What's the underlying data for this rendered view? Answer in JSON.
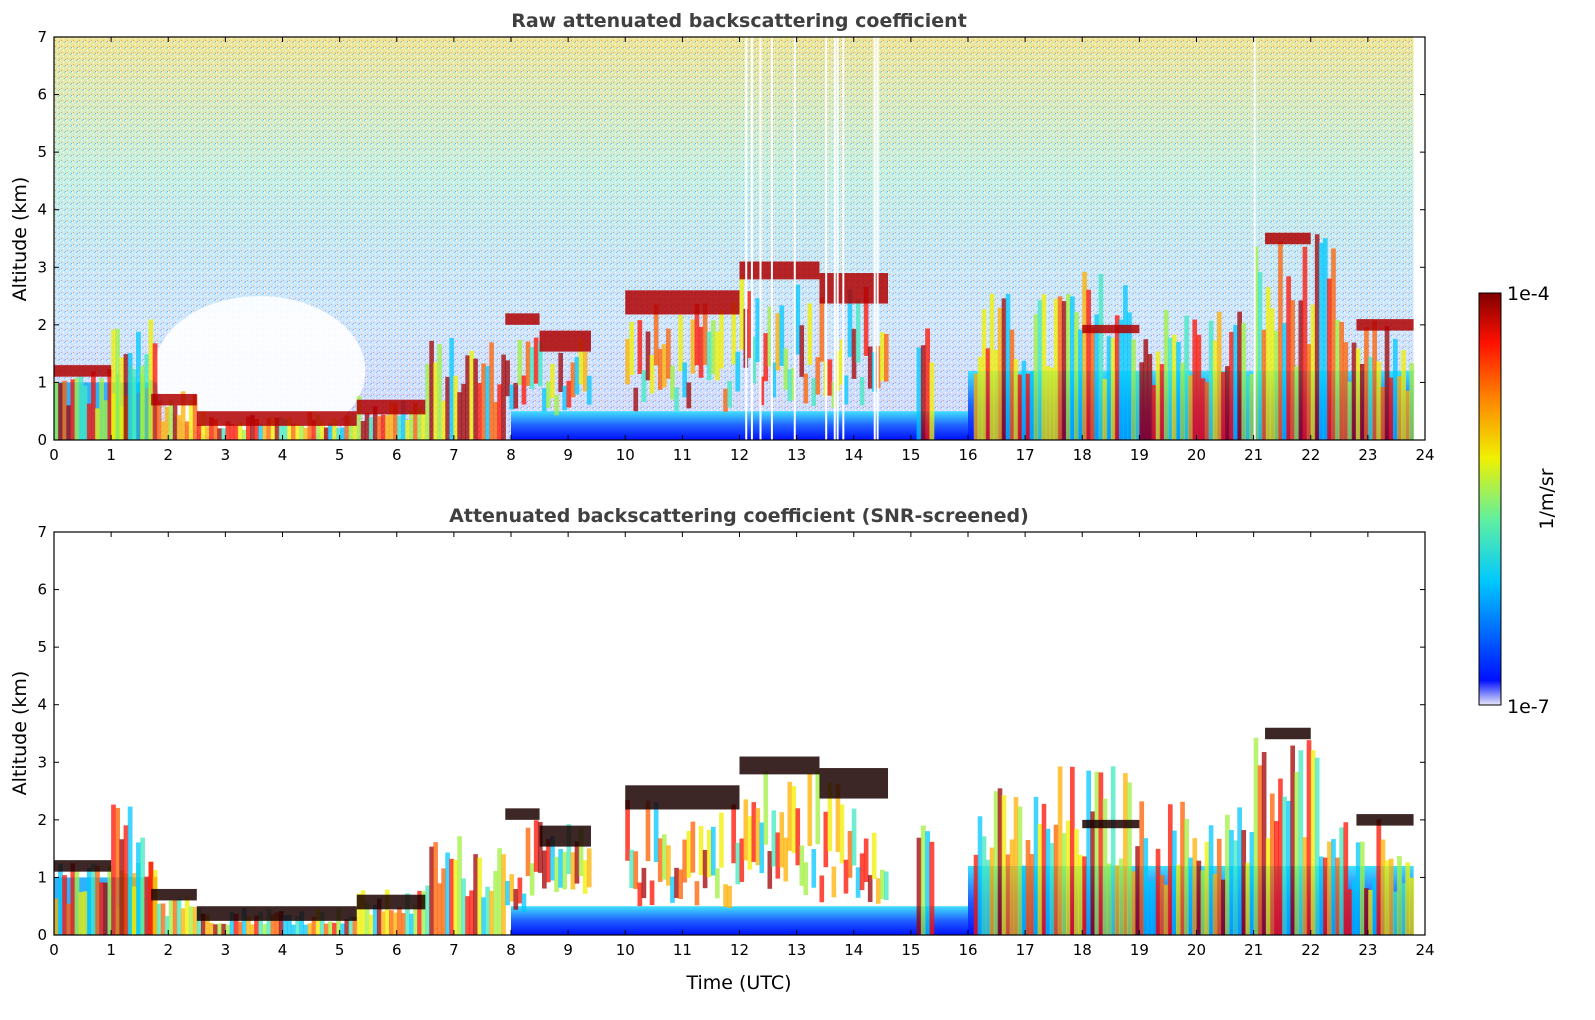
{
  "chart_data": [
    {
      "type": "heatmap",
      "title": "Raw attenuated backscattering coefficient",
      "xlabel": "",
      "ylabel": "Altitude (km)",
      "xlim": [
        0,
        24
      ],
      "ylim": [
        0,
        7
      ],
      "xticks": [
        "0",
        "1",
        "2",
        "3",
        "4",
        "5",
        "6",
        "7",
        "8",
        "9",
        "10",
        "11",
        "12",
        "13",
        "14",
        "15",
        "16",
        "17",
        "18",
        "19",
        "20",
        "21",
        "22",
        "23",
        "24"
      ],
      "yticks": [
        "0",
        "1",
        "2",
        "3",
        "4",
        "5",
        "6",
        "7"
      ],
      "data_end_time": 23.8,
      "cloud_layers": [
        {
          "t": [
            0.0,
            1.0
          ],
          "alt": [
            1.0,
            1.3
          ]
        },
        {
          "t": [
            1.7,
            2.5
          ],
          "alt": [
            0.5,
            0.8
          ]
        },
        {
          "t": [
            2.5,
            5.3
          ],
          "alt": [
            0.1,
            0.5
          ]
        },
        {
          "t": [
            5.3,
            6.5
          ],
          "alt": [
            0.3,
            0.7
          ]
        },
        {
          "t": [
            7.9,
            8.5
          ],
          "alt": [
            1.9,
            2.2
          ]
        },
        {
          "t": [
            8.5,
            9.4
          ],
          "alt": [
            1.3,
            1.9
          ]
        },
        {
          "t": [
            10.0,
            12.0
          ],
          "alt": [
            1.9,
            2.6
          ]
        },
        {
          "t": [
            12.0,
            13.4
          ],
          "alt": [
            2.6,
            3.1
          ]
        },
        {
          "t": [
            13.4,
            14.6
          ],
          "alt": [
            2.0,
            2.9
          ]
        },
        {
          "t": [
            18.0,
            19.0
          ],
          "alt": [
            1.8,
            2.0
          ]
        },
        {
          "t": [
            21.2,
            22.0
          ],
          "alt": [
            3.3,
            3.6
          ]
        },
        {
          "t": [
            22.8,
            23.8
          ],
          "alt": [
            1.8,
            2.1
          ]
        }
      ]
    },
    {
      "type": "heatmap",
      "title": "Attenuated backscattering coefficient (SNR-screened)",
      "xlabel": "Time (UTC)",
      "ylabel": "Altitude (km)",
      "xlim": [
        0,
        24
      ],
      "ylim": [
        0,
        7
      ],
      "xticks": [
        "0",
        "1",
        "2",
        "3",
        "4",
        "5",
        "6",
        "7",
        "8",
        "9",
        "10",
        "11",
        "12",
        "13",
        "14",
        "15",
        "16",
        "17",
        "18",
        "19",
        "20",
        "21",
        "22",
        "23",
        "24"
      ],
      "yticks": [
        "0",
        "1",
        "2",
        "3",
        "4",
        "5",
        "6",
        "7"
      ],
      "data_end_time": 23.8
    }
  ],
  "colorbar": {
    "label": "1/m/sr",
    "max_label": "1e-4",
    "min_label": "1e-7",
    "scale": "log",
    "range": [
      1e-07,
      0.0001
    ],
    "colors": [
      "#e8e8f8",
      "#0010ff",
      "#00c8ff",
      "#60f0a0",
      "#f0f000",
      "#ff8000",
      "#ff1000",
      "#800000"
    ]
  }
}
